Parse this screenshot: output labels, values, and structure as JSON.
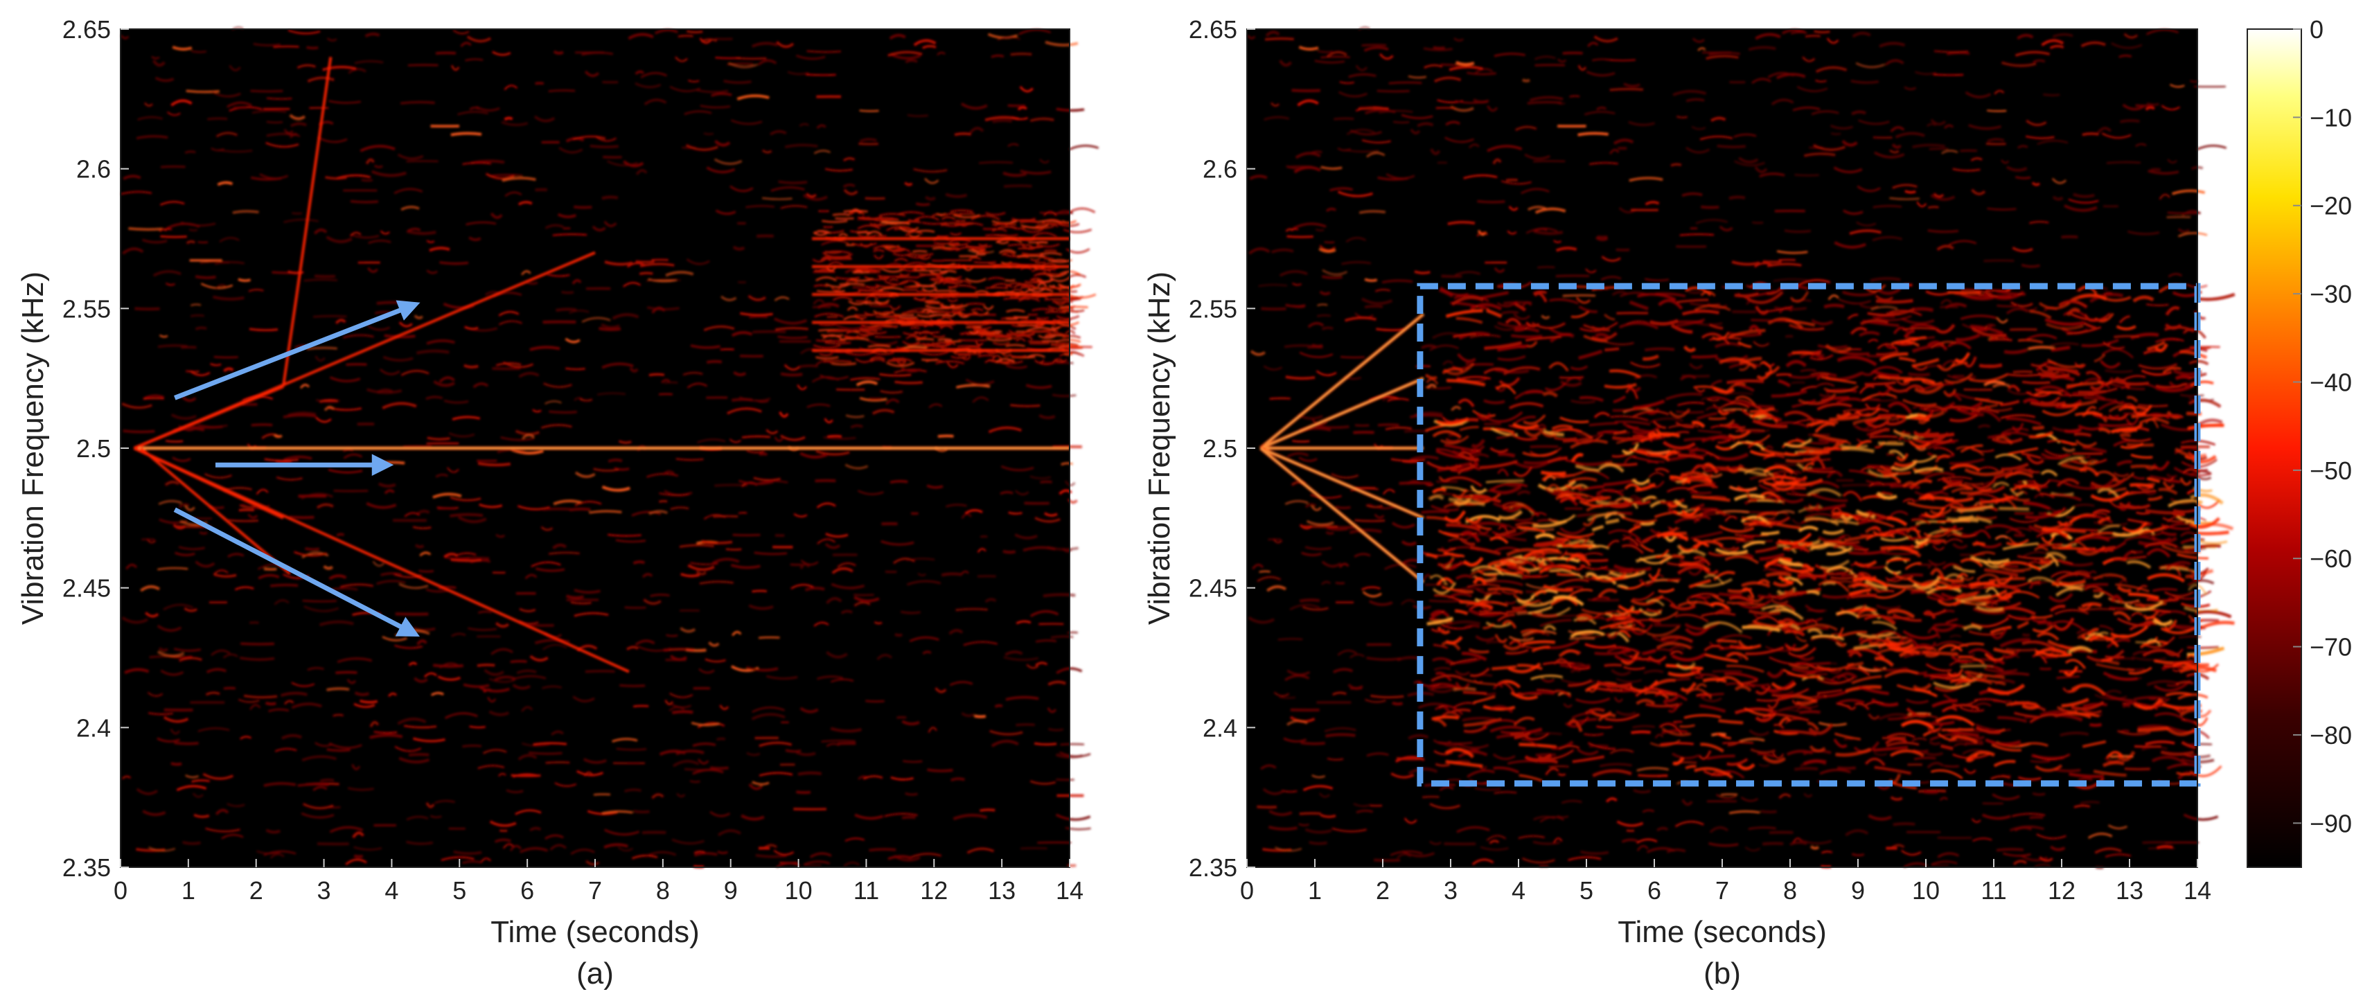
{
  "chart_data": [
    {
      "type": "heatmap",
      "panel_label": "(a)",
      "xlabel": "Time (seconds)",
      "ylabel": "Vibration Frequency (kHz)",
      "xlim": [
        0,
        14
      ],
      "ylim": [
        2.35,
        2.65
      ],
      "xticks": [
        "0",
        "1",
        "2",
        "3",
        "4",
        "5",
        "6",
        "7",
        "8",
        "9",
        "10",
        "11",
        "12",
        "13",
        "14"
      ],
      "yticks": [
        "2.35",
        "2.4",
        "2.45",
        "2.5",
        "2.55",
        "2.6",
        "2.65"
      ],
      "colormap": "hot",
      "ridges": [
        {
          "x": [
            0.2,
            14
          ],
          "y": [
            2.5,
            2.5
          ]
        },
        {
          "x": [
            0.2,
            2.4
          ],
          "y": [
            2.5,
            2.522
          ]
        },
        {
          "x": [
            2.4,
            2.6
          ],
          "y": [
            2.522,
            2.555
          ]
        },
        {
          "x": [
            2.6,
            3.1
          ],
          "y": [
            2.555,
            2.64
          ]
        },
        {
          "x": [
            0.2,
            7.0
          ],
          "y": [
            2.5,
            2.57
          ]
        },
        {
          "x": [
            0.2,
            2.4
          ],
          "y": [
            2.5,
            2.475
          ]
        },
        {
          "x": [
            0.2,
            7.5
          ],
          "y": [
            2.5,
            2.42
          ]
        },
        {
          "x": [
            0.3,
            2.5
          ],
          "y": [
            2.5,
            2.455
          ]
        },
        {
          "x": [
            10.2,
            14
          ],
          "y": [
            2.575,
            2.575
          ]
        },
        {
          "x": [
            10.2,
            14
          ],
          "y": [
            2.565,
            2.565
          ]
        },
        {
          "x": [
            10.2,
            14
          ],
          "y": [
            2.555,
            2.555
          ]
        },
        {
          "x": [
            10.2,
            14
          ],
          "y": [
            2.545,
            2.545
          ]
        },
        {
          "x": [
            10.2,
            14
          ],
          "y": [
            2.535,
            2.535
          ]
        }
      ],
      "annotations": [
        {
          "type": "arrow",
          "from": [
            0.8,
            2.518
          ],
          "to": [
            4.3,
            2.551
          ],
          "color": "#6fa8f0"
        },
        {
          "type": "arrow",
          "from": [
            1.4,
            2.494
          ],
          "to": [
            3.9,
            2.494
          ],
          "color": "#6fa8f0"
        },
        {
          "type": "arrow",
          "from": [
            0.8,
            2.478
          ],
          "to": [
            4.3,
            2.434
          ],
          "color": "#6fa8f0"
        }
      ]
    },
    {
      "type": "heatmap",
      "panel_label": "(b)",
      "xlabel": "Time (seconds)",
      "ylabel": "Vibration Frequency (kHz)",
      "xlim": [
        0,
        14
      ],
      "ylim": [
        2.35,
        2.65
      ],
      "xticks": [
        "0",
        "1",
        "2",
        "3",
        "4",
        "5",
        "6",
        "7",
        "8",
        "9",
        "10",
        "11",
        "12",
        "13",
        "14"
      ],
      "yticks": [
        "2.35",
        "2.4",
        "2.45",
        "2.5",
        "2.55",
        "2.6",
        "2.65"
      ],
      "colormap": "hot",
      "ridges": [
        {
          "x": [
            0.2,
            2.6
          ],
          "y": [
            2.5,
            2.5
          ]
        },
        {
          "x": [
            0.2,
            2.6
          ],
          "y": [
            2.5,
            2.548
          ]
        },
        {
          "x": [
            0.2,
            2.6
          ],
          "y": [
            2.5,
            2.525
          ]
        },
        {
          "x": [
            0.2,
            2.6
          ],
          "y": [
            2.5,
            2.475
          ]
        },
        {
          "x": [
            0.2,
            2.6
          ],
          "y": [
            2.5,
            2.452
          ]
        }
      ],
      "annotations": [
        {
          "type": "dashed-rectangle",
          "x": [
            2.55,
            14
          ],
          "y": [
            2.38,
            2.558
          ],
          "color": "#5aa0f0"
        }
      ],
      "colorbar": {
        "range": [
          -95,
          0
        ],
        "ticks": [
          "0",
          "-10",
          "-20",
          "-30",
          "-40",
          "-50",
          "-60",
          "-70",
          "-80",
          "-90"
        ]
      }
    }
  ]
}
